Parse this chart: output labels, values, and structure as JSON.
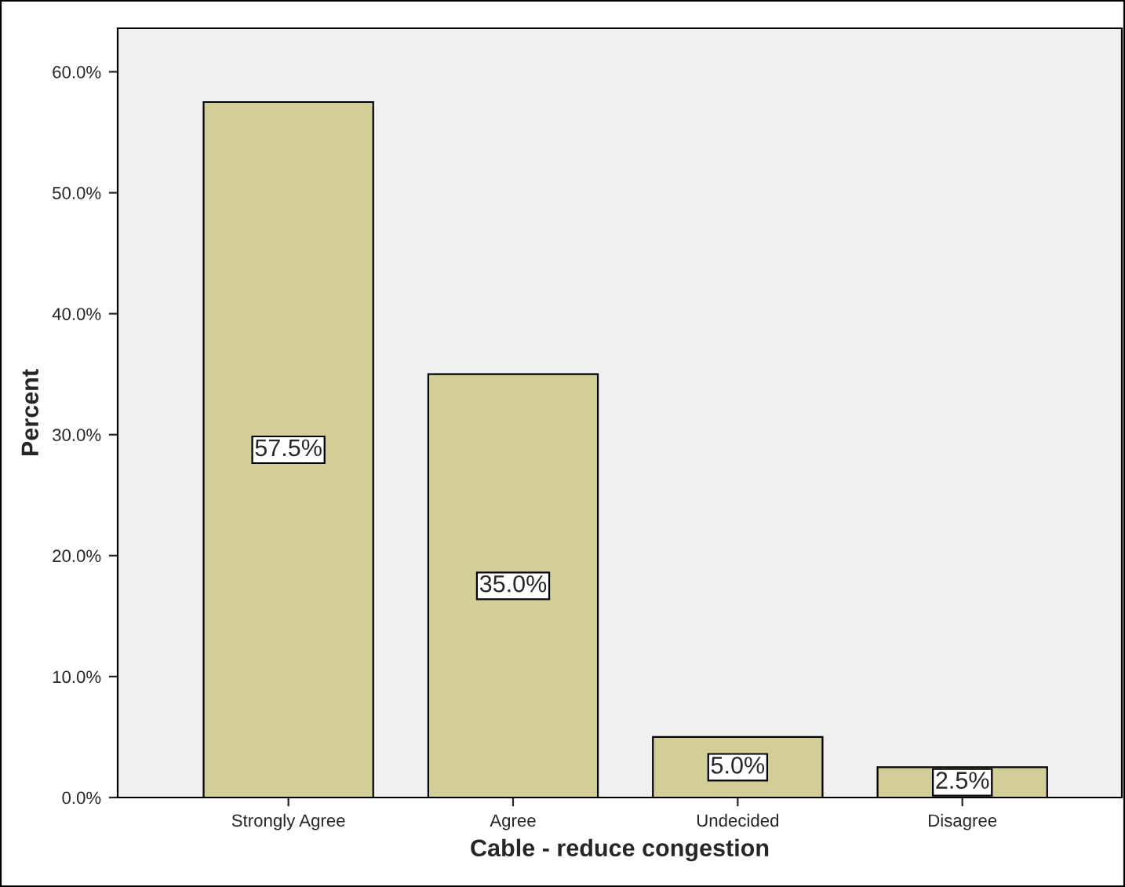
{
  "chart_data": {
    "type": "bar",
    "xlabel": "Cable - reduce congestion",
    "ylabel": "Percent",
    "categories": [
      "Strongly Agree",
      "Agree",
      "Undecided",
      "Disagree"
    ],
    "values": [
      57.5,
      35.0,
      5.0,
      2.5
    ],
    "color": "#d3ce98",
    "ylim": [
      0,
      63.6
    ],
    "yticks": [
      {
        "value": 0,
        "label": "0.0%"
      },
      {
        "value": 10,
        "label": "10.0%"
      },
      {
        "value": 20,
        "label": "20.0%"
      },
      {
        "value": 30,
        "label": "30.0%"
      },
      {
        "value": 40,
        "label": "40.0%"
      },
      {
        "value": 50,
        "label": "50.0%"
      },
      {
        "value": 60,
        "label": "60.0%"
      }
    ],
    "value_labels": [
      "57.5%",
      "35.0%",
      "5.0%",
      "2.5%"
    ]
  }
}
